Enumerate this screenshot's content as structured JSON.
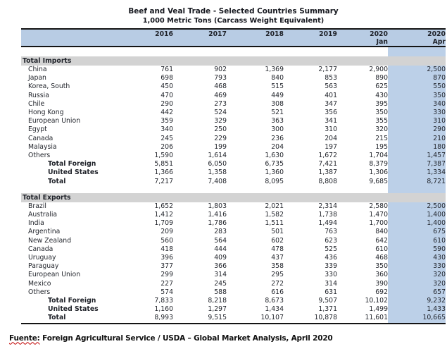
{
  "header": {
    "title": "Beef and Veal Trade - Selected Countries Summary",
    "subtitle": "1,000 Metric Tons (Carcass Weight Equivalent)"
  },
  "table": {
    "columns": [
      {
        "year": "2016",
        "month": ""
      },
      {
        "year": "2017",
        "month": ""
      },
      {
        "year": "2018",
        "month": ""
      },
      {
        "year": "2019",
        "month": ""
      },
      {
        "year": "2020",
        "month": "Jan"
      },
      {
        "year": "2020",
        "month": "Apr"
      }
    ],
    "sections": [
      {
        "label": "Total Imports",
        "rows": [
          {
            "name": "China",
            "style": "country",
            "values": [
              "761",
              "902",
              "1,369",
              "2,177",
              "2,900",
              "2,500"
            ]
          },
          {
            "name": "Japan",
            "style": "country",
            "values": [
              "698",
              "793",
              "840",
              "853",
              "890",
              "870"
            ]
          },
          {
            "name": "Korea, South",
            "style": "country",
            "values": [
              "450",
              "468",
              "515",
              "563",
              "625",
              "550"
            ]
          },
          {
            "name": "Russia",
            "style": "country",
            "values": [
              "470",
              "469",
              "449",
              "401",
              "430",
              "350"
            ]
          },
          {
            "name": "Chile",
            "style": "country",
            "values": [
              "290",
              "273",
              "308",
              "347",
              "395",
              "340"
            ]
          },
          {
            "name": "Hong Kong",
            "style": "country",
            "values": [
              "442",
              "524",
              "521",
              "356",
              "350",
              "330"
            ]
          },
          {
            "name": "European Union",
            "style": "country",
            "values": [
              "359",
              "329",
              "363",
              "341",
              "355",
              "310"
            ]
          },
          {
            "name": "Egypt",
            "style": "country",
            "values": [
              "340",
              "250",
              "300",
              "310",
              "320",
              "290"
            ]
          },
          {
            "name": "Canada",
            "style": "country",
            "values": [
              "245",
              "229",
              "236",
              "204",
              "215",
              "210"
            ]
          },
          {
            "name": "Malaysia",
            "style": "country",
            "values": [
              "206",
              "199",
              "204",
              "197",
              "195",
              "180"
            ]
          },
          {
            "name": "Others",
            "style": "country",
            "values": [
              "1,590",
              "1,614",
              "1,630",
              "1,672",
              "1,704",
              "1,457"
            ]
          },
          {
            "name": "Total Foreign",
            "style": "total",
            "values": [
              "5,851",
              "6,050",
              "6,735",
              "7,421",
              "8,379",
              "7,387"
            ]
          },
          {
            "name": "United States",
            "style": "total",
            "values": [
              "1,366",
              "1,358",
              "1,360",
              "1,387",
              "1,306",
              "1,334"
            ]
          },
          {
            "name": "Total",
            "style": "total",
            "values": [
              "7,217",
              "7,408",
              "8,095",
              "8,808",
              "9,685",
              "8,721"
            ]
          }
        ]
      },
      {
        "label": "Total Exports",
        "rows": [
          {
            "name": "Brazil",
            "style": "country",
            "values": [
              "1,652",
              "1,803",
              "2,021",
              "2,314",
              "2,580",
              "2,500"
            ]
          },
          {
            "name": "Australia",
            "style": "country",
            "values": [
              "1,412",
              "1,416",
              "1,582",
              "1,738",
              "1,470",
              "1,400"
            ]
          },
          {
            "name": "India",
            "style": "country",
            "values": [
              "1,709",
              "1,786",
              "1,511",
              "1,494",
              "1,700",
              "1,400"
            ]
          },
          {
            "name": "Argentina",
            "style": "country",
            "values": [
              "209",
              "283",
              "501",
              "763",
              "840",
              "675"
            ]
          },
          {
            "name": "New Zealand",
            "style": "country",
            "values": [
              "560",
              "564",
              "602",
              "623",
              "642",
              "610"
            ]
          },
          {
            "name": "Canada",
            "style": "country",
            "values": [
              "418",
              "444",
              "478",
              "525",
              "610",
              "590"
            ]
          },
          {
            "name": "Uruguay",
            "style": "country",
            "values": [
              "396",
              "409",
              "437",
              "436",
              "468",
              "430"
            ]
          },
          {
            "name": "Paraguay",
            "style": "country",
            "values": [
              "377",
              "366",
              "358",
              "339",
              "350",
              "330"
            ]
          },
          {
            "name": "European Union",
            "style": "country",
            "values": [
              "299",
              "314",
              "295",
              "330",
              "360",
              "320"
            ]
          },
          {
            "name": "Mexico",
            "style": "country",
            "values": [
              "227",
              "245",
              "272",
              "314",
              "390",
              "320"
            ]
          },
          {
            "name": "Others",
            "style": "country",
            "values": [
              "574",
              "588",
              "616",
              "631",
              "692",
              "657"
            ]
          },
          {
            "name": "Total Foreign",
            "style": "total",
            "values": [
              "7,833",
              "8,218",
              "8,673",
              "9,507",
              "10,102",
              "9,232"
            ]
          },
          {
            "name": "United States",
            "style": "total",
            "values": [
              "1,160",
              "1,297",
              "1,434",
              "1,371",
              "1,499",
              "1,433"
            ]
          },
          {
            "name": "Total",
            "style": "total",
            "values": [
              "8,993",
              "9,515",
              "10,107",
              "10,878",
              "11,601",
              "10,665"
            ]
          }
        ]
      }
    ]
  },
  "footer": {
    "source_label": "Fuente:",
    "source_text": "Foreign Agricultural Service / USDA – Global Market Analysis, April 2020"
  },
  "colors": {
    "band_blue": "#b8cce4",
    "highlight_blue": "#bcd0e8",
    "section_gray": "#d3d3d3",
    "border_black": "#141414",
    "text": "#1f2229"
  }
}
